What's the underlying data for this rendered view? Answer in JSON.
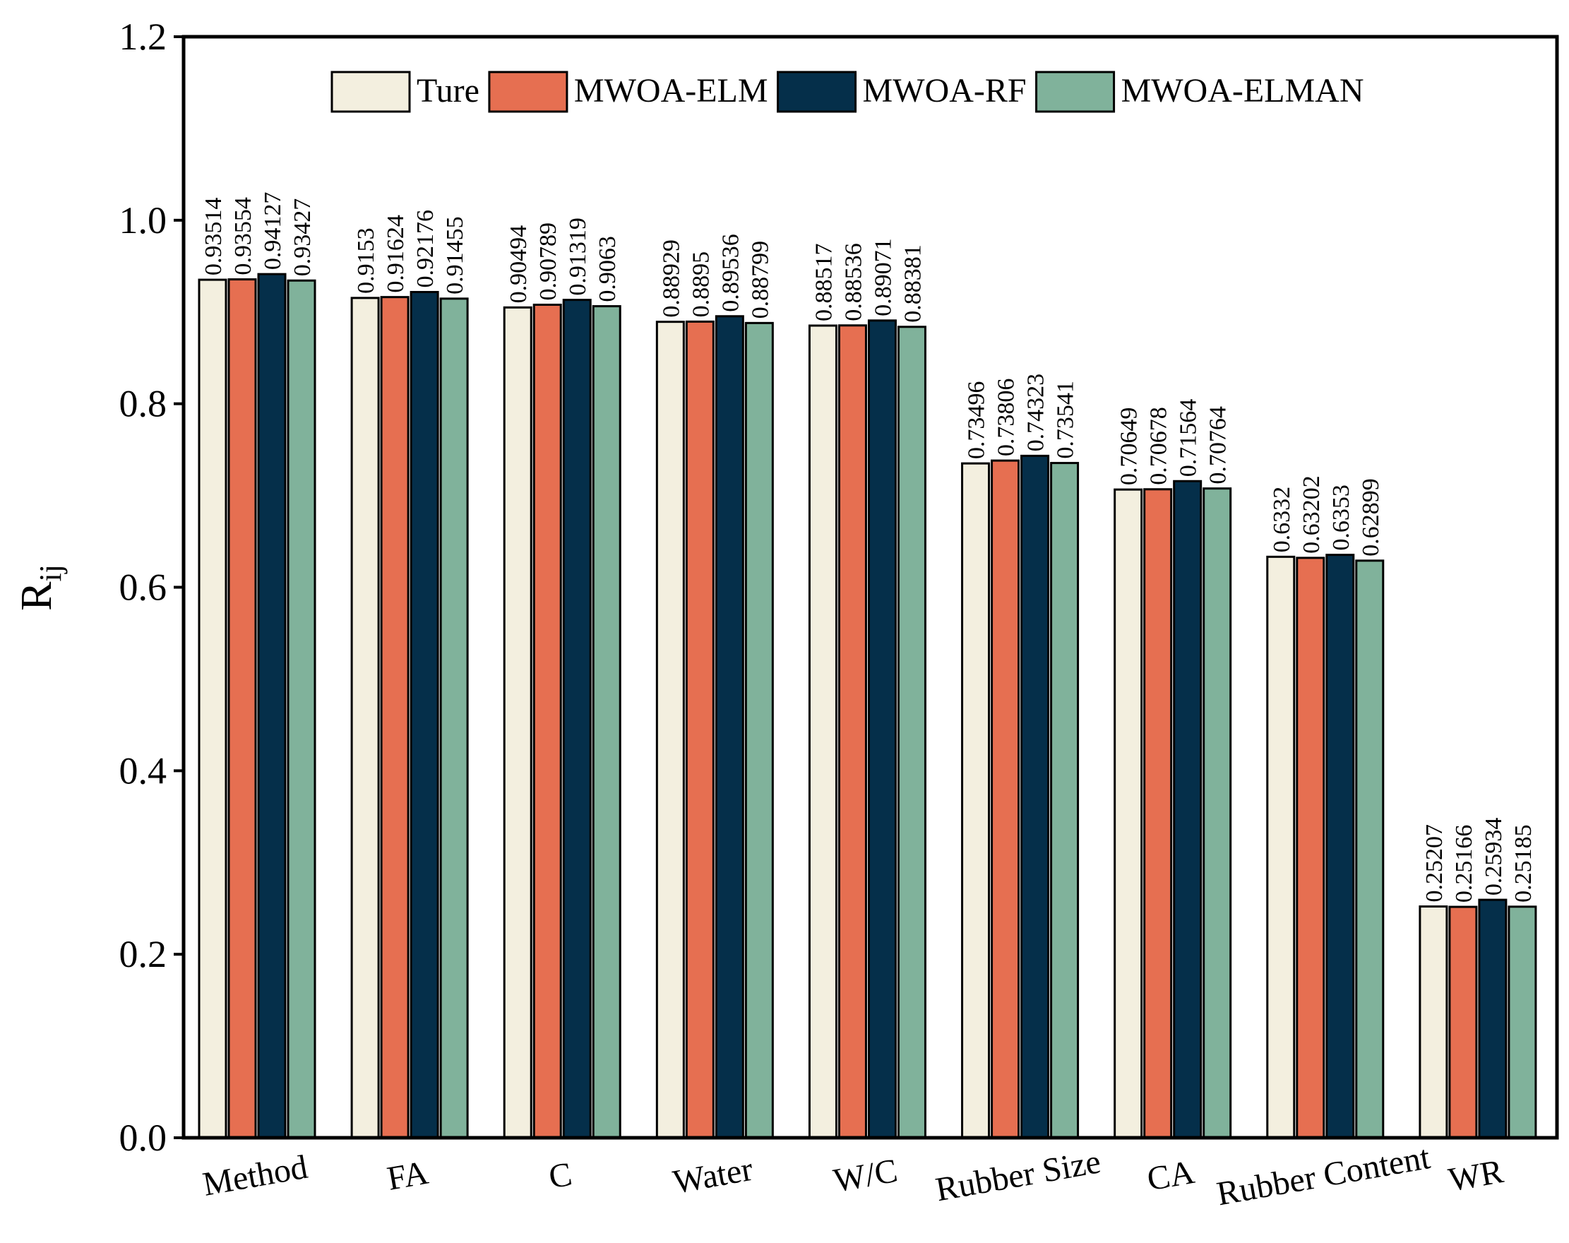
{
  "chart_data": {
    "type": "bar",
    "title": "",
    "xlabel": "",
    "ylabel": "R",
    "ylabel_subscript": "ij",
    "ylim": [
      0,
      1.2
    ],
    "yticks": [
      "0.0",
      "0.2",
      "0.4",
      "0.6",
      "0.8",
      "1.0",
      "1.2"
    ],
    "grid": false,
    "legend_position": "top",
    "categories": [
      "Method",
      "FA",
      "C",
      "Water",
      "W/C",
      "Rubber Size",
      "CA",
      "Rubber Content",
      "WR"
    ],
    "series": [
      {
        "name": "Ture",
        "color": "#f3efdf",
        "values": [
          0.93514,
          0.9153,
          0.90494,
          0.88929,
          0.88517,
          0.73496,
          0.70649,
          0.6332,
          0.25207
        ],
        "labels": [
          "0.93514",
          "0.9153",
          "0.90494",
          "0.88929",
          "0.88517",
          "0.73496",
          "0.70649",
          "0.6332",
          "0.25207"
        ]
      },
      {
        "name": "MWOA-ELM",
        "color": "#e66f51",
        "values": [
          0.93554,
          0.91624,
          0.90789,
          0.8895,
          0.88536,
          0.73806,
          0.70678,
          0.63202,
          0.25166
        ],
        "labels": [
          "0.93554",
          "0.91624",
          "0.90789",
          "0.8895",
          "0.88536",
          "0.73806",
          "0.70678",
          "0.63202",
          "0.25166"
        ]
      },
      {
        "name": "MWOA-RF",
        "color": "#052f4a",
        "values": [
          0.94127,
          0.92176,
          0.91319,
          0.89536,
          0.89071,
          0.74323,
          0.71564,
          0.6353,
          0.25934
        ],
        "labels": [
          "0.94127",
          "0.92176",
          "0.91319",
          "0.89536",
          "0.89071",
          "0.74323",
          "0.71564",
          "0.6353",
          "0.25934"
        ]
      },
      {
        "name": "MWOA-ELMAN",
        "color": "#80b29b",
        "values": [
          0.93427,
          0.91455,
          0.9063,
          0.88799,
          0.88381,
          0.73541,
          0.70764,
          0.62899,
          0.25185
        ],
        "labels": [
          "0.93427",
          "0.91455",
          "0.9063",
          "0.88799",
          "0.88381",
          "0.73541",
          "0.70764",
          "0.62899",
          "0.25185"
        ]
      }
    ]
  }
}
